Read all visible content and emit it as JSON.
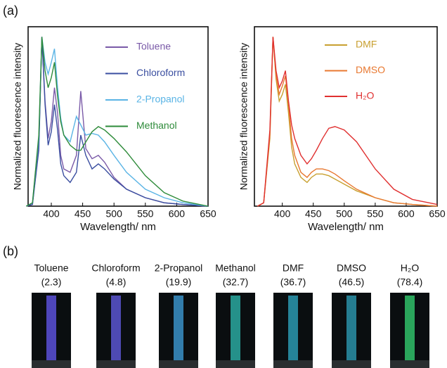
{
  "panel_a": "(a)",
  "panel_b": "(b)",
  "chart_data": [
    {
      "type": "line",
      "xlabel": "Wavelength/ nm",
      "ylabel": "Normalized fluorescence intensity",
      "legend": "upper right",
      "xlim": [
        363,
        650
      ],
      "ylim": [
        0,
        1.06
      ],
      "xticks": [
        400,
        450,
        500,
        550,
        600,
        650
      ],
      "x": [
        360,
        370,
        380,
        385,
        390,
        395,
        400,
        405,
        410,
        415,
        420,
        430,
        440,
        447,
        455,
        465,
        475,
        485,
        500,
        520,
        550,
        580,
        610,
        650
      ],
      "series": [
        {
          "name": "Toluene",
          "color": "#7a5aa8",
          "values": [
            0,
            0.01,
            0.35,
            1.0,
            0.62,
            0.4,
            0.5,
            0.7,
            0.55,
            0.3,
            0.22,
            0.2,
            0.3,
            0.68,
            0.34,
            0.28,
            0.3,
            0.26,
            0.17,
            0.1,
            0.05,
            0.02,
            0.01,
            0
          ]
        },
        {
          "name": "Chloroform",
          "color": "#3a4ea0",
          "values": [
            0,
            0.01,
            0.33,
            1.0,
            0.6,
            0.36,
            0.44,
            0.6,
            0.45,
            0.25,
            0.18,
            0.14,
            0.2,
            0.42,
            0.3,
            0.22,
            0.25,
            0.22,
            0.16,
            0.1,
            0.05,
            0.02,
            0.01,
            0
          ]
        },
        {
          "name": "2-Propanol",
          "color": "#5ab4e5",
          "values": [
            0,
            0.02,
            0.4,
            1.0,
            0.85,
            0.78,
            0.85,
            0.93,
            0.7,
            0.52,
            0.42,
            0.38,
            0.53,
            0.48,
            0.42,
            0.43,
            0.42,
            0.38,
            0.3,
            0.2,
            0.1,
            0.05,
            0.02,
            0
          ]
        },
        {
          "name": "Methanol",
          "color": "#2e8b3a",
          "values": [
            0,
            0.02,
            0.42,
            1.0,
            0.8,
            0.7,
            0.76,
            0.85,
            0.65,
            0.5,
            0.42,
            0.36,
            0.33,
            0.33,
            0.38,
            0.44,
            0.47,
            0.45,
            0.4,
            0.32,
            0.18,
            0.08,
            0.03,
            0
          ]
        }
      ]
    },
    {
      "type": "line",
      "xlabel": "Wavelength/ nm",
      "ylabel": "Normalized fluorescence intensity",
      "legend": "upper right",
      "xlim": [
        355,
        650
      ],
      "ylim": [
        0,
        1.06
      ],
      "xticks": [
        400,
        450,
        500,
        550,
        600,
        650
      ],
      "x": [
        360,
        370,
        380,
        385,
        390,
        395,
        400,
        405,
        410,
        415,
        420,
        430,
        440,
        447,
        455,
        465,
        475,
        485,
        500,
        520,
        550,
        580,
        610,
        650
      ],
      "series": [
        {
          "name": "DMF",
          "color": "#c8a030",
          "values": [
            0,
            0.02,
            0.4,
            1.0,
            0.75,
            0.62,
            0.66,
            0.72,
            0.55,
            0.35,
            0.25,
            0.17,
            0.14,
            0.17,
            0.19,
            0.19,
            0.18,
            0.16,
            0.13,
            0.09,
            0.05,
            0.02,
            0.01,
            0
          ]
        },
        {
          "name": "DMSO",
          "color": "#e87830",
          "values": [
            0,
            0.02,
            0.42,
            1.0,
            0.77,
            0.66,
            0.71,
            0.77,
            0.6,
            0.4,
            0.3,
            0.2,
            0.17,
            0.2,
            0.22,
            0.22,
            0.21,
            0.19,
            0.15,
            0.1,
            0.05,
            0.02,
            0.01,
            0
          ]
        },
        {
          "name": "H₂O",
          "color": "#e03030",
          "values": [
            0,
            0.02,
            0.45,
            1.0,
            0.8,
            0.7,
            0.74,
            0.8,
            0.62,
            0.48,
            0.4,
            0.3,
            0.25,
            0.28,
            0.33,
            0.4,
            0.46,
            0.47,
            0.45,
            0.38,
            0.22,
            0.1,
            0.04,
            0.01
          ]
        }
      ]
    }
  ],
  "samples": [
    {
      "name": "Toluene",
      "polarity": "(2.3)",
      "glow": "#5a50d8"
    },
    {
      "name": "Chloroform",
      "polarity": "(4.8)",
      "glow": "#5a55d0"
    },
    {
      "name": "2-Propanol",
      "polarity": "(19.9)",
      "glow": "#3a90c8"
    },
    {
      "name": "Methanol",
      "polarity": "(32.7)",
      "glow": "#2aa8a0"
    },
    {
      "name": "DMF",
      "polarity": "(36.7)",
      "glow": "#2a98b0"
    },
    {
      "name": "DMSO",
      "polarity": "(46.5)",
      "glow": "#2a90a8"
    },
    {
      "name": "H₂O",
      "polarity": "(78.4)",
      "glow": "#30c068"
    }
  ]
}
